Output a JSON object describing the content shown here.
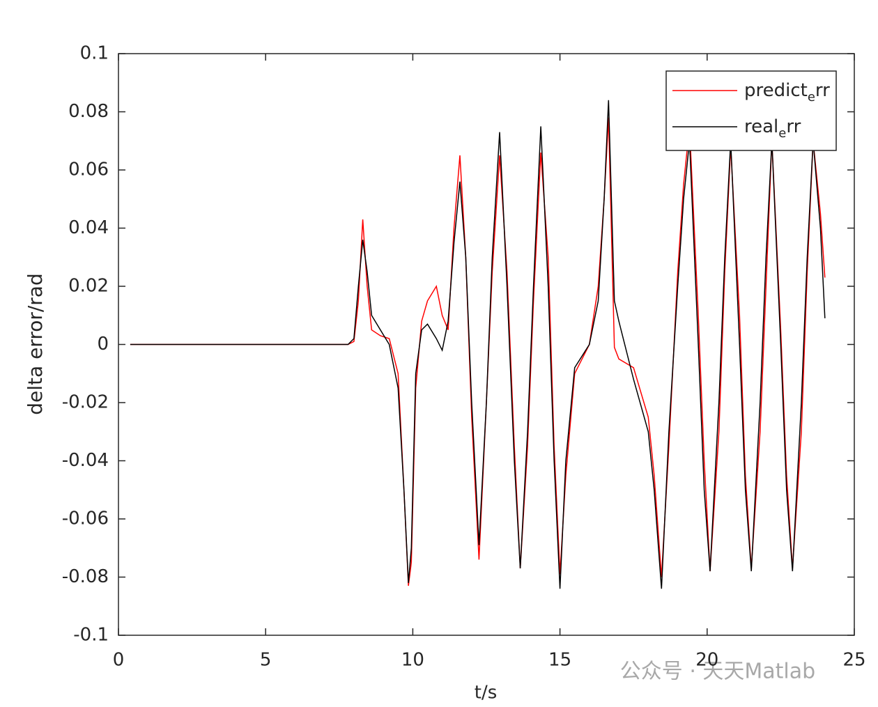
{
  "chart_data": {
    "type": "line",
    "xlabel": "t/s",
    "ylabel": "delta error/rad",
    "xlim": [
      0,
      25
    ],
    "xticks": [
      0,
      5,
      10,
      15,
      20,
      25
    ],
    "ylim": [
      -0.1,
      0.1
    ],
    "yticks": [
      -0.1,
      -0.08,
      -0.06,
      -0.04,
      -0.02,
      0,
      0.02,
      0.04,
      0.06,
      0.08,
      0.1
    ],
    "legend": "upper right",
    "watermark": "公众号 · 天天Matlab",
    "x": [
      0.4,
      7.8,
      8.0,
      8.15,
      8.3,
      8.45,
      8.6,
      8.9,
      9.2,
      9.5,
      9.7,
      9.85,
      9.95,
      10.1,
      10.3,
      10.5,
      10.8,
      11.0,
      11.2,
      11.4,
      11.6,
      11.8,
      12.0,
      12.25,
      12.5,
      12.7,
      12.95,
      13.2,
      13.45,
      13.65,
      13.9,
      14.1,
      14.35,
      14.6,
      14.8,
      15.0,
      15.2,
      15.5,
      16.0,
      16.3,
      16.5,
      16.65,
      16.85,
      17.0,
      17.5,
      18.0,
      18.2,
      18.45,
      18.7,
      19.0,
      19.2,
      19.4,
      19.7,
      19.9,
      20.1,
      20.4,
      20.6,
      20.8,
      21.1,
      21.3,
      21.5,
      21.8,
      22.0,
      22.2,
      22.5,
      22.7,
      22.9,
      23.2,
      23.4,
      23.6,
      23.85,
      24.0
    ],
    "series": [
      {
        "name": "predict_err",
        "color": "#ff0000",
        "values": [
          0,
          0,
          0.001,
          0.015,
          0.043,
          0.02,
          0.005,
          0.003,
          0.002,
          -0.01,
          -0.05,
          -0.083,
          -0.075,
          -0.015,
          0.008,
          0.015,
          0.02,
          0.01,
          0.005,
          0.04,
          0.065,
          0.03,
          -0.025,
          -0.074,
          -0.02,
          0.025,
          0.065,
          0.025,
          -0.035,
          -0.077,
          -0.035,
          0.015,
          0.066,
          0.03,
          -0.035,
          -0.079,
          -0.045,
          -0.01,
          0.0,
          0.02,
          0.05,
          0.078,
          -0.001,
          -0.005,
          -0.008,
          -0.025,
          -0.045,
          -0.08,
          -0.035,
          0.025,
          0.055,
          0.075,
          0.01,
          -0.04,
          -0.078,
          -0.03,
          0.025,
          0.068,
          0.01,
          -0.045,
          -0.077,
          -0.03,
          0.02,
          0.07,
          0.005,
          -0.045,
          -0.077,
          -0.03,
          0.025,
          0.07,
          0.045,
          0.023
        ]
      },
      {
        "name": "real_err",
        "color": "#000000",
        "values": [
          0,
          0,
          0.002,
          0.02,
          0.036,
          0.025,
          0.01,
          0.005,
          0.0,
          -0.015,
          -0.05,
          -0.082,
          -0.07,
          -0.01,
          0.005,
          0.007,
          0.002,
          -0.002,
          0.008,
          0.035,
          0.056,
          0.03,
          -0.02,
          -0.069,
          -0.02,
          0.03,
          0.073,
          0.02,
          -0.04,
          -0.077,
          -0.03,
          0.02,
          0.075,
          0.02,
          -0.04,
          -0.084,
          -0.04,
          -0.008,
          0.0,
          0.015,
          0.05,
          0.084,
          0.015,
          0.008,
          -0.012,
          -0.03,
          -0.05,
          -0.084,
          -0.03,
          0.02,
          0.05,
          0.07,
          0.0,
          -0.05,
          -0.078,
          -0.02,
          0.03,
          0.07,
          0.0,
          -0.05,
          -0.078,
          -0.02,
          0.03,
          0.07,
          0.0,
          -0.05,
          -0.078,
          -0.02,
          0.03,
          0.07,
          0.04,
          0.009
        ]
      }
    ]
  }
}
